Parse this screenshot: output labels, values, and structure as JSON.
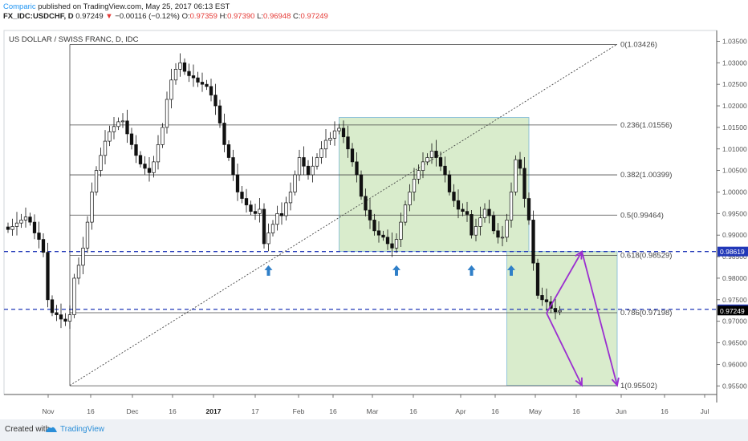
{
  "header": {
    "author": "Comparic",
    "published_text": " published on TradingView.com, May 25, 2017 06:13 EST",
    "symbol": "FX_IDC:USDCHF, D",
    "last": "0.97249",
    "change": "−0.00116 (−0.12%)",
    "o_label": "O:",
    "o": "0.97359",
    "h_label": "H:",
    "h": "0.97390",
    "l_label": "L:",
    "l": "0.96948",
    "c_label": "C:",
    "c": "0.97249"
  },
  "chart_data": {
    "type": "candlestick",
    "title": "US DOLLAR / SWISS FRANC, D, IDC",
    "y_range": [
      0.953,
      1.0375
    ],
    "y_ticks": [
      "1.03500",
      "1.03000",
      "1.02500",
      "1.02000",
      "1.01500",
      "1.01000",
      "1.00500",
      "1.00000",
      "0.99500",
      "0.99000",
      "0.98500",
      "0.98000",
      "0.97500",
      "0.97000",
      "0.96500",
      "0.96000",
      "0.95500"
    ],
    "x_ticks": [
      "Nov",
      "16",
      "Dec",
      "16",
      "2017",
      "17",
      "Feb",
      "16",
      "Mar",
      "16",
      "Apr",
      "16",
      "May",
      "16",
      "Jun",
      "16",
      "Jul"
    ],
    "fib_levels": [
      {
        "label": "0(1.03426)",
        "value": 1.03426
      },
      {
        "label": "0.236(1.01556)",
        "value": 1.01556
      },
      {
        "label": "0.382(1.00399)",
        "value": 1.00399
      },
      {
        "label": "0.5(0.99464)",
        "value": 0.99464
      },
      {
        "label": "0.618(0.98529)",
        "value": 0.98529
      },
      {
        "label": "0.786(0.97198)",
        "value": 0.97198
      },
      {
        "label": "1(0.95502)",
        "value": 0.95502
      }
    ],
    "horizontal_lines": [
      0.98619,
      0.97277
    ],
    "price_badges": [
      {
        "label": "0.98619",
        "value": 0.98619,
        "color": "#2137b8"
      },
      {
        "label": "0.97277",
        "value": 0.97277,
        "color": "#2137b8"
      },
      {
        "label": "0.97249",
        "value": 0.97249,
        "color": "#000000"
      }
    ],
    "zones": [
      {
        "from_index": 75,
        "to_index": 118,
        "low": 0.9862,
        "high": 1.0173
      },
      {
        "from_index": 113,
        "to_index": 138,
        "low": 0.9551,
        "high": 0.9862
      }
    ],
    "trend_line": {
      "from_index": 14,
      "from_value": 0.9551,
      "to_index": 138,
      "to_value": 1.0343
    },
    "support_arrows_at_index": [
      59,
      88,
      105,
      114
    ],
    "projection_path": [
      {
        "index": 122,
        "value": 0.9719
      },
      {
        "index": 130,
        "value": 0.9862
      },
      {
        "index": 138,
        "value": 0.9551
      }
    ],
    "projection_path_2": [
      {
        "index": 122,
        "value": 0.9719
      },
      {
        "index": 130,
        "value": 0.9551
      }
    ],
    "closes": [
      0.9913,
      0.992,
      0.9928,
      0.9935,
      0.9942,
      0.993,
      0.9905,
      0.989,
      0.986,
      0.975,
      0.972,
      0.9715,
      0.9705,
      0.97,
      0.9715,
      0.98,
      0.983,
      0.987,
      0.993,
      1.0,
      1.005,
      1.0085,
      1.0118,
      1.014,
      1.0152,
      1.0163,
      1.0165,
      1.0135,
      1.011,
      1.0085,
      1.0065,
      1.0055,
      1.0045,
      1.007,
      1.011,
      1.015,
      1.0215,
      1.026,
      1.0285,
      1.03,
      1.028,
      1.027,
      1.0265,
      1.0255,
      1.025,
      1.0245,
      1.0225,
      1.02,
      1.016,
      1.011,
      1.008,
      1.004,
      1.0,
      0.9985,
      0.997,
      0.9955,
      0.995,
      0.996,
      0.988,
      0.9905,
      0.9925,
      0.995,
      0.9945,
      0.9975,
      1.0,
      1.004,
      1.008,
      1.006,
      1.004,
      1.006,
      1.008,
      1.01,
      1.012,
      1.0125,
      1.0142,
      1.0148,
      1.0128,
      1.01,
      1.007,
      1.004,
      0.999,
      0.9958,
      0.9935,
      0.991,
      0.99,
      0.9895,
      0.988,
      0.987,
      0.989,
      0.993,
      0.997,
      1.0,
      1.003,
      1.005,
      1.007,
      1.008,
      1.0095,
      1.008,
      1.006,
      1.004,
      1.0,
      0.998,
      0.996,
      0.9955,
      0.9948,
      0.99,
      0.992,
      0.994,
      0.996,
      0.9945,
      0.991,
      0.9895,
      0.9895,
      0.9935,
      1.0,
      1.0075,
      1.0055,
      0.9985,
      0.9935,
      0.9835,
      0.976,
      0.975,
      0.9745,
      0.973,
      0.9722,
      0.9725
    ]
  }
}
